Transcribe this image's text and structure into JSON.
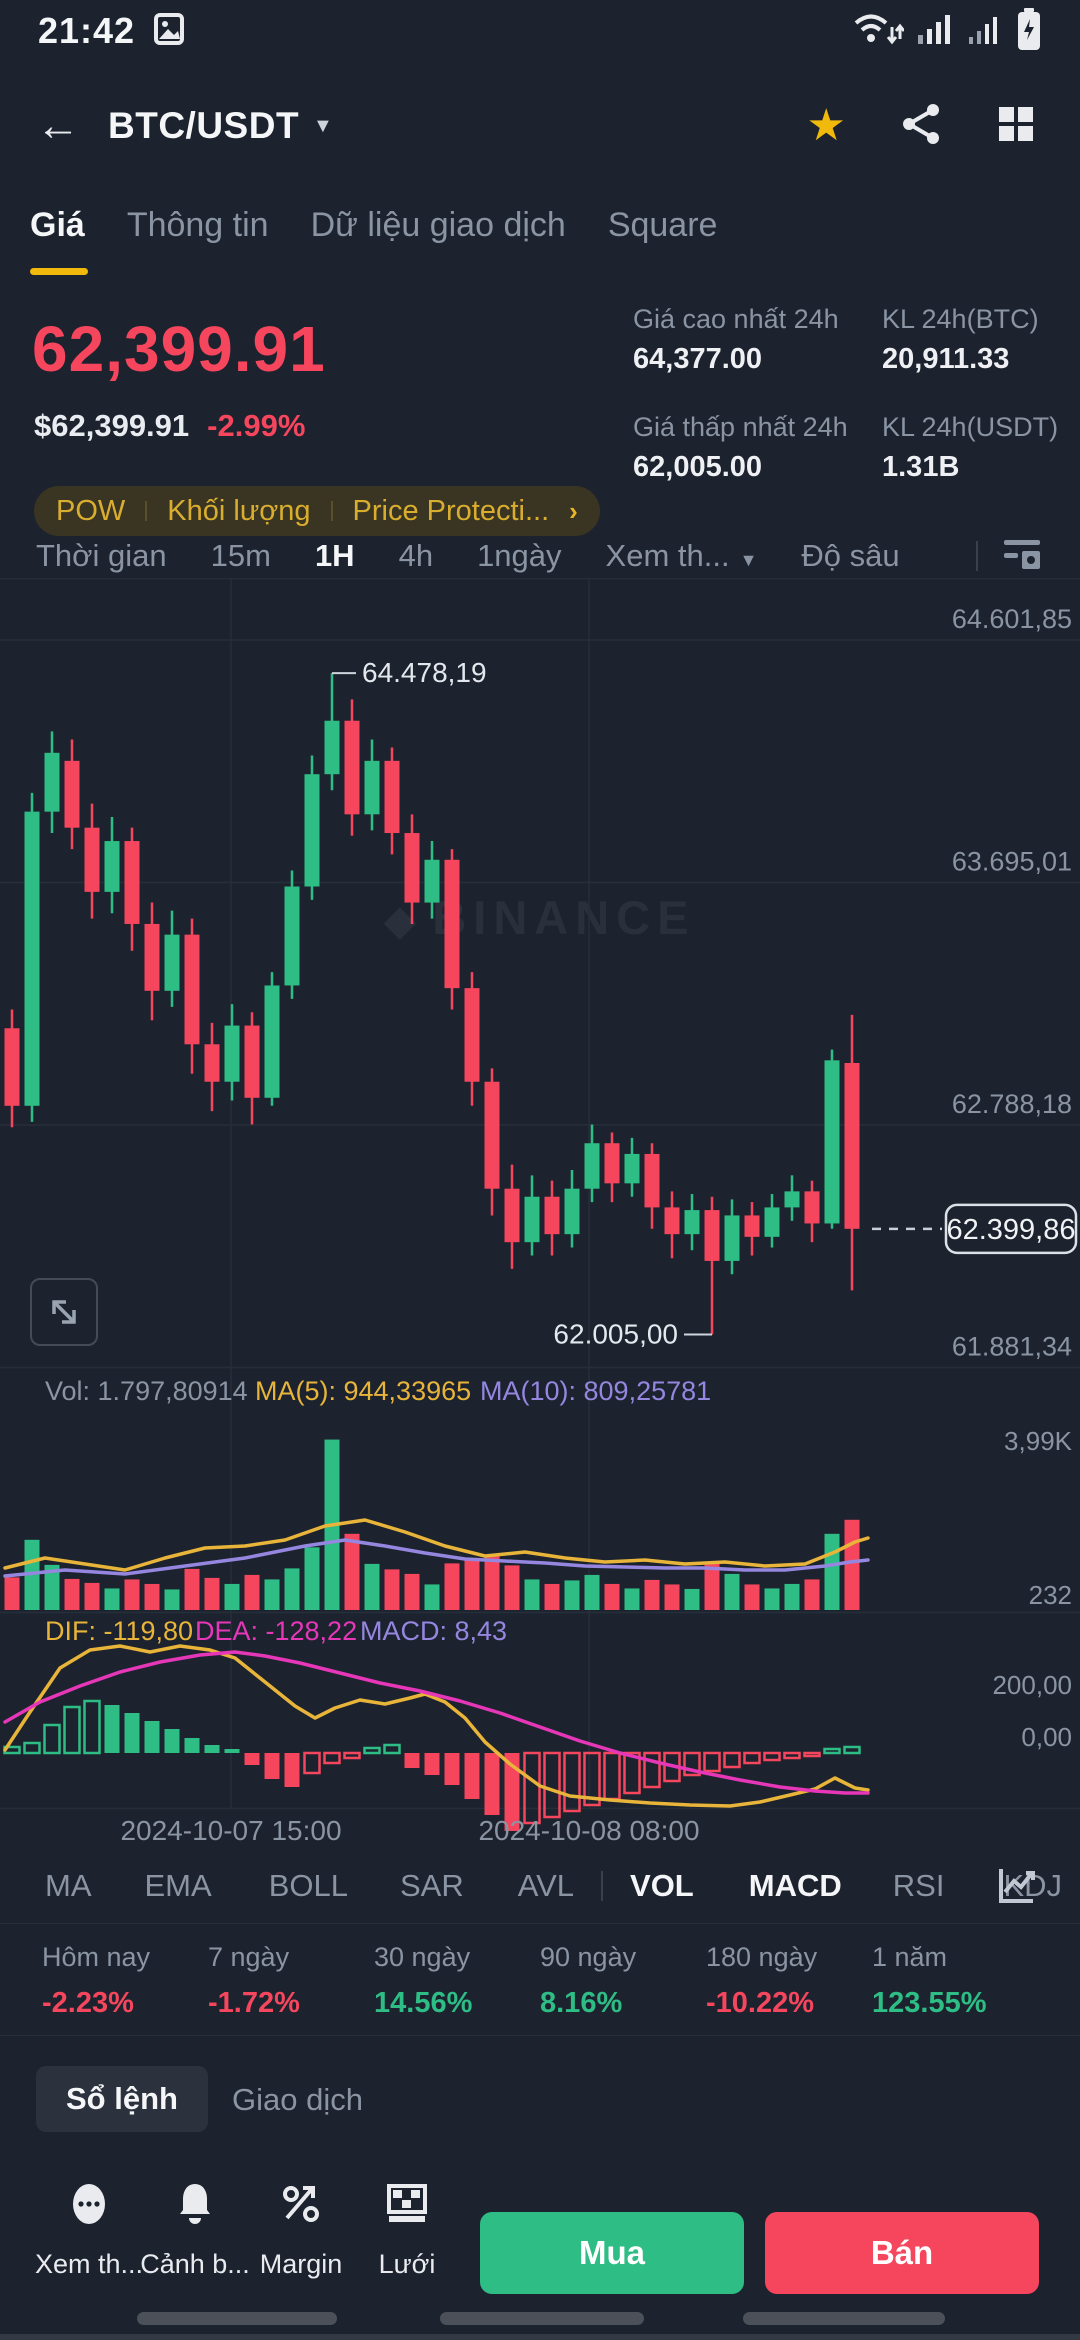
{
  "colors": {
    "bg": "#1c232e",
    "up": "#2ebd85",
    "down": "#f6465d",
    "accent": "#f0b90b",
    "grid": "#262e3a",
    "axis_text": "#8a94a3",
    "dif": "#e8b43a",
    "dea": "#e637b8",
    "macd_purple": "#9586e0"
  },
  "status_bar": {
    "time": "21:42"
  },
  "header": {
    "pair": "BTC/USDT"
  },
  "tabs": [
    {
      "label": "Giá",
      "active": true
    },
    {
      "label": "Thông tin",
      "active": false
    },
    {
      "label": "Dữ liệu giao dịch",
      "active": false
    },
    {
      "label": "Square",
      "active": false
    }
  ],
  "price": {
    "last": "62,399.91",
    "fiat": "$62,399.91",
    "change": "-2.99%",
    "tags": [
      "POW",
      "Khối lượng",
      "Price Protecti..."
    ],
    "tags_arrow": "›"
  },
  "stats": [
    {
      "label": "Giá cao nhất 24h",
      "value": "64,377.00"
    },
    {
      "label": "KL 24h(BTC)",
      "value": "20,911.33"
    },
    {
      "label": "Giá thấp nhất 24h",
      "value": "62,005.00"
    },
    {
      "label": "KL 24h(USDT)",
      "value": "1.31B"
    }
  ],
  "timeframe": {
    "items": [
      {
        "label": "Thời gian",
        "active": false
      },
      {
        "label": "15m",
        "active": false
      },
      {
        "label": "1H",
        "active": true
      },
      {
        "label": "4h",
        "active": false
      },
      {
        "label": "1ngày",
        "active": false
      }
    ],
    "more": "Xem th...",
    "depth": "Độ sâu"
  },
  "chart_data": {
    "type": "candlestick",
    "timeframe": "1H",
    "title": "BTC/USDT 1H",
    "y_axis": [
      {
        "label": "64.601,85",
        "price": 64601.85
      },
      {
        "label": "63.695,01",
        "price": 63695.01
      },
      {
        "label": "62.788,18",
        "price": 62788.18
      },
      {
        "label": "61.881,34",
        "price": 61881.34
      }
    ],
    "x_axis": [
      "2024-10-07 15:00",
      "2024-10-08 08:00"
    ],
    "annotations": {
      "high": "64.478,19",
      "high_price": 64478.19,
      "low": "62.005,00",
      "low_price": 62005.0,
      "last": "62.399,86",
      "last_price": 62399.86
    },
    "watermark": "BINANCE",
    "candles": [
      [
        63150,
        63220,
        62780,
        62860
      ],
      [
        62860,
        64030,
        62800,
        63960
      ],
      [
        63960,
        64260,
        63880,
        64180
      ],
      [
        64150,
        64230,
        63820,
        63900
      ],
      [
        63900,
        63990,
        63560,
        63660
      ],
      [
        63660,
        63940,
        63580,
        63850
      ],
      [
        63850,
        63900,
        63440,
        63540
      ],
      [
        63540,
        63620,
        63180,
        63290
      ],
      [
        63290,
        63590,
        63230,
        63500
      ],
      [
        63500,
        63560,
        62980,
        63090
      ],
      [
        63090,
        63170,
        62840,
        62950
      ],
      [
        62950,
        63240,
        62880,
        63160
      ],
      [
        63160,
        63210,
        62790,
        62890
      ],
      [
        62890,
        63360,
        62860,
        63310
      ],
      [
        63310,
        63740,
        63260,
        63680
      ],
      [
        63680,
        64170,
        63630,
        64100
      ],
      [
        64100,
        64478.19,
        64040,
        64300
      ],
      [
        64300,
        64380,
        63870,
        63950
      ],
      [
        63950,
        64230,
        63890,
        64150
      ],
      [
        64150,
        64200,
        63800,
        63880
      ],
      [
        63880,
        63950,
        63540,
        63620
      ],
      [
        63620,
        63850,
        63560,
        63780
      ],
      [
        63780,
        63820,
        63220,
        63300
      ],
      [
        63300,
        63360,
        62860,
        62950
      ],
      [
        62950,
        63000,
        62450,
        62550
      ],
      [
        62550,
        62640,
        62250,
        62350
      ],
      [
        62350,
        62600,
        62300,
        62520
      ],
      [
        62520,
        62580,
        62300,
        62380
      ],
      [
        62380,
        62620,
        62330,
        62550
      ],
      [
        62550,
        62790,
        62500,
        62720
      ],
      [
        62720,
        62760,
        62500,
        62570
      ],
      [
        62570,
        62740,
        62520,
        62680
      ],
      [
        62680,
        62720,
        62400,
        62480
      ],
      [
        62480,
        62540,
        62290,
        62380
      ],
      [
        62380,
        62530,
        62320,
        62470
      ],
      [
        62470,
        62520,
        62005,
        62280
      ],
      [
        62280,
        62510,
        62230,
        62450
      ],
      [
        62450,
        62500,
        62300,
        62370
      ],
      [
        62370,
        62530,
        62330,
        62480
      ],
      [
        62480,
        62600,
        62430,
        62540
      ],
      [
        62540,
        62580,
        62350,
        62420
      ],
      [
        62420,
        63070,
        62400,
        63030
      ],
      [
        63020,
        63200,
        62170,
        62400
      ]
    ],
    "volume": {
      "info": {
        "vol": "Vol: 1.797,80914",
        "ma5": "MA(5): 944,33965",
        "ma10": "MA(10): 809,25781"
      },
      "axis": [
        "3,99K",
        "232"
      ],
      "values": [
        650,
        1400,
        900,
        620,
        540,
        430,
        610,
        520,
        410,
        820,
        640,
        520,
        700,
        610,
        830,
        1250,
        3400,
        1520,
        920,
        810,
        720,
        510,
        930,
        1010,
        1080,
        890,
        610,
        520,
        590,
        700,
        520,
        430,
        600,
        510,
        420,
        950,
        720,
        510,
        430,
        520,
        610,
        1520,
        1800
      ],
      "ma5_line": [
        [
          5,
          1568
        ],
        [
          45,
          1558
        ],
        [
          85,
          1564
        ],
        [
          125,
          1570
        ],
        [
          165,
          1558
        ],
        [
          205,
          1548
        ],
        [
          245,
          1546
        ],
        [
          285,
          1540
        ],
        [
          325,
          1526
        ],
        [
          365,
          1520
        ],
        [
          405,
          1532
        ],
        [
          445,
          1546
        ],
        [
          485,
          1556
        ],
        [
          525,
          1552
        ],
        [
          565,
          1558
        ],
        [
          605,
          1562
        ],
        [
          645,
          1560
        ],
        [
          685,
          1564
        ],
        [
          725,
          1562
        ],
        [
          765,
          1566
        ],
        [
          805,
          1564
        ],
        [
          835,
          1552
        ],
        [
          855,
          1542
        ],
        [
          868,
          1538
        ]
      ],
      "ma10_line": [
        [
          5,
          1576
        ],
        [
          65,
          1570
        ],
        [
          125,
          1574
        ],
        [
          185,
          1566
        ],
        [
          245,
          1558
        ],
        [
          305,
          1546
        ],
        [
          345,
          1540
        ],
        [
          385,
          1546
        ],
        [
          425,
          1553
        ],
        [
          465,
          1559
        ],
        [
          505,
          1561
        ],
        [
          545,
          1563
        ],
        [
          585,
          1566
        ],
        [
          625,
          1567
        ],
        [
          665,
          1568
        ],
        [
          705,
          1568
        ],
        [
          745,
          1570
        ],
        [
          785,
          1570
        ],
        [
          825,
          1566
        ],
        [
          850,
          1562
        ],
        [
          868,
          1560
        ]
      ]
    },
    "macd": {
      "info": {
        "dif": "DIF: -119,80",
        "dea": "DEA: -128,22",
        "macd": "MACD: 8,43"
      },
      "axis": [
        "200,00",
        "0,00"
      ],
      "hist": [
        6,
        10,
        28,
        46,
        52,
        48,
        40,
        32,
        24,
        15,
        8,
        4,
        -12,
        -26,
        -34,
        -20,
        -10,
        -5,
        5,
        8,
        -15,
        -22,
        -32,
        -46,
        -62,
        -78,
        -70,
        -64,
        -58,
        -52,
        -46,
        -40,
        -34,
        -28,
        -22,
        -18,
        -14,
        -10,
        -7,
        -5,
        -3,
        4,
        6
      ],
      "dif_line": [
        [
          5,
          1750
        ],
        [
          30,
          1712
        ],
        [
          60,
          1668
        ],
        [
          90,
          1650
        ],
        [
          120,
          1646
        ],
        [
          150,
          1652
        ],
        [
          180,
          1646
        ],
        [
          210,
          1650
        ],
        [
          235,
          1658
        ],
        [
          265,
          1682
        ],
        [
          295,
          1706
        ],
        [
          315,
          1718
        ],
        [
          335,
          1708
        ],
        [
          360,
          1700
        ],
        [
          385,
          1704
        ],
        [
          410,
          1698
        ],
        [
          425,
          1694
        ],
        [
          445,
          1702
        ],
        [
          465,
          1718
        ],
        [
          485,
          1742
        ],
        [
          510,
          1764
        ],
        [
          540,
          1786
        ],
        [
          570,
          1796
        ],
        [
          610,
          1800
        ],
        [
          650,
          1803
        ],
        [
          690,
          1805
        ],
        [
          730,
          1806
        ],
        [
          760,
          1802
        ],
        [
          790,
          1795
        ],
        [
          815,
          1789
        ],
        [
          835,
          1778
        ],
        [
          855,
          1788
        ],
        [
          868,
          1790
        ]
      ],
      "dea_line": [
        [
          5,
          1722
        ],
        [
          40,
          1702
        ],
        [
          80,
          1686
        ],
        [
          120,
          1672
        ],
        [
          160,
          1662
        ],
        [
          200,
          1655
        ],
        [
          235,
          1652
        ],
        [
          265,
          1656
        ],
        [
          300,
          1663
        ],
        [
          340,
          1673
        ],
        [
          380,
          1683
        ],
        [
          420,
          1691
        ],
        [
          460,
          1701
        ],
        [
          500,
          1713
        ],
        [
          540,
          1727
        ],
        [
          580,
          1741
        ],
        [
          620,
          1753
        ],
        [
          660,
          1763
        ],
        [
          700,
          1772
        ],
        [
          740,
          1780
        ],
        [
          780,
          1787
        ],
        [
          815,
          1791
        ],
        [
          845,
          1793
        ],
        [
          868,
          1793
        ]
      ]
    }
  },
  "indicator_tabs": [
    {
      "label": "MA",
      "active": false
    },
    {
      "label": "EMA",
      "active": false
    },
    {
      "label": "BOLL",
      "active": false
    },
    {
      "label": "SAR",
      "active": false
    },
    {
      "label": "AVL",
      "active": false
    },
    {
      "label": "VOL",
      "active": true
    },
    {
      "label": "MACD",
      "active": true
    },
    {
      "label": "RSI",
      "active": false
    },
    {
      "label": "KDJ",
      "active": false
    }
  ],
  "performance": [
    {
      "label": "Hôm nay",
      "value": "-2.23%",
      "dir": "down"
    },
    {
      "label": "7 ngày",
      "value": "-1.72%",
      "dir": "down"
    },
    {
      "label": "30 ngày",
      "value": "14.56%",
      "dir": "up"
    },
    {
      "label": "90 ngày",
      "value": "8.16%",
      "dir": "up"
    },
    {
      "label": "180 ngày",
      "value": "-10.22%",
      "dir": "down"
    },
    {
      "label": "1 năm",
      "value": "123.55%",
      "dir": "up"
    }
  ],
  "orderbook_tabs": {
    "active": "Sổ lệnh",
    "other": "Giao dịch"
  },
  "bottom_bar": {
    "actions": [
      {
        "label": "Xem th...",
        "icon": "more-ellipsis-icon"
      },
      {
        "label": "Cảnh b...",
        "icon": "alert-bell-icon"
      },
      {
        "label": "Margin",
        "icon": "margin-percent-icon"
      },
      {
        "label": "Lưới",
        "icon": "grid-bot-icon"
      }
    ],
    "buy": "Mua",
    "sell": "Bán"
  }
}
